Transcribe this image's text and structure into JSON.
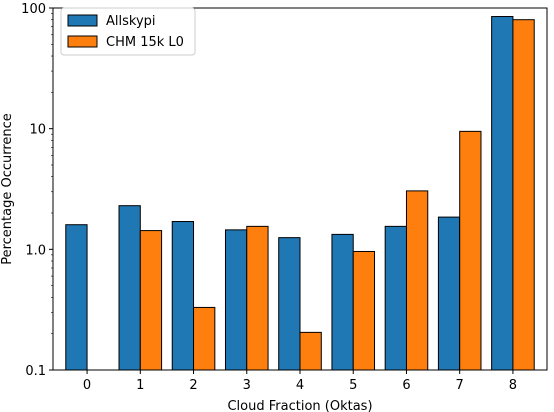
{
  "chart_data": {
    "type": "bar",
    "categories": [
      "0",
      "1",
      "2",
      "3",
      "4",
      "5",
      "6",
      "7",
      "8"
    ],
    "series": [
      {
        "name": "Allskypi",
        "color": "#1f77b4",
        "values": [
          1.6,
          2.3,
          1.7,
          1.45,
          1.25,
          1.33,
          1.55,
          1.85,
          85
        ]
      },
      {
        "name": "CHM 15k L0",
        "color": "#ff7f0e",
        "values": [
          null,
          1.43,
          0.33,
          1.55,
          0.205,
          0.96,
          3.05,
          9.5,
          80
        ]
      }
    ],
    "xlabel": "Cloud Fraction (Oktas)",
    "ylabel": "Percentage Occurrence",
    "yscale": "log",
    "ylim": [
      0.1,
      100
    ],
    "yticks": [
      0.1,
      1.0,
      10,
      100
    ],
    "ytick_labels": [
      "0.1",
      "1.0",
      "10",
      "100"
    ],
    "legend": "top-left",
    "grid": false
  }
}
